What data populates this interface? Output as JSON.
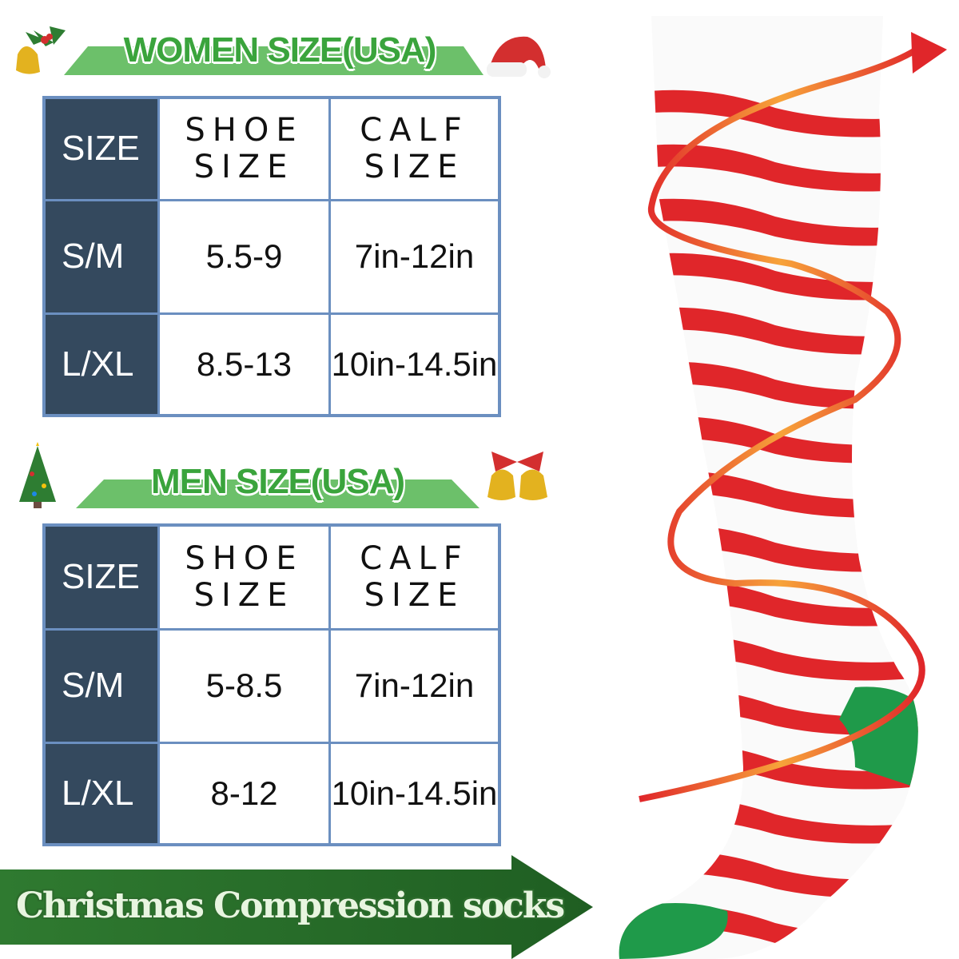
{
  "women": {
    "title": "WOMEN SIZE(USA)",
    "headers": [
      "SIZE",
      "SHOE SIZE",
      "CALF SIZE"
    ],
    "header_lines": {
      "shoe": [
        "SHOE",
        "SIZE"
      ],
      "calf": [
        "CALF",
        "SIZE"
      ]
    },
    "rows": [
      {
        "size": "S/M",
        "shoe": "5.5-9",
        "calf": "7in-12in"
      },
      {
        "size": "L/XL",
        "shoe": "8.5-13",
        "calf": "10in-14.5in"
      }
    ]
  },
  "men": {
    "title": "MEN SIZE(USA)",
    "headers": [
      "SIZE",
      "SHOE SIZE",
      "CALF SIZE"
    ],
    "header_lines": {
      "shoe": [
        "SHOE",
        "SIZE"
      ],
      "calf": [
        "CALF",
        "SIZE"
      ]
    },
    "rows": [
      {
        "size": "S/M",
        "shoe": "5-8.5",
        "calf": "7in-12in"
      },
      {
        "size": "L/XL",
        "shoe": "8-12",
        "calf": "10in-14.5in"
      }
    ]
  },
  "banner": {
    "text": "Christmas Compression socks"
  },
  "decorations": [
    "holly-bell-icon",
    "santa-hat-icon",
    "christmas-tree-icon",
    "bells-bow-icon"
  ],
  "colors": {
    "header_bg": "#34495e",
    "border": "#6b8fc0",
    "title_green": "#3aa43c",
    "sock_red": "#e0262a",
    "sock_green": "#1f9a4a",
    "arrow_dark_green": "#2c6b2c"
  }
}
